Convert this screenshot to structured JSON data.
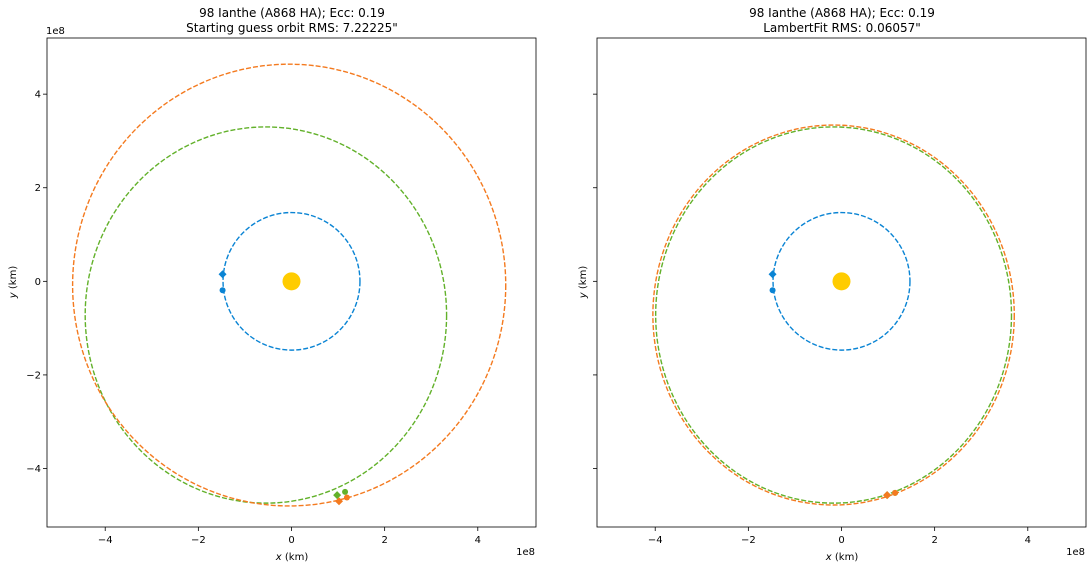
{
  "chart_data": [
    {
      "type": "scatter",
      "title_line1": "98 Ianthe (A868 HA); Ecc: 0.19",
      "title_line2": "Starting guess orbit RMS: 7.22225\"",
      "xlabel_var": "x",
      "xlabel_unit": " (km)",
      "ylabel_var": "y",
      "ylabel_unit": " (km)",
      "x_offset_text": "1e8",
      "y_offset_text": "1e8",
      "xlim": [
        -5.25,
        5.25
      ],
      "ylim": [
        -5.25,
        5.2
      ],
      "xticks": [
        -4,
        -2,
        0,
        2,
        4
      ],
      "yticks": [
        -4,
        -2,
        0,
        2,
        4
      ],
      "xtick_labels": [
        "−4",
        "−2",
        "0",
        "2",
        "4"
      ],
      "ytick_labels": [
        "−4",
        "−2",
        "0",
        "2",
        "4"
      ],
      "show_ytick_labels": true,
      "sun": {
        "x": 0,
        "y": 0,
        "color": "#ffcc00"
      },
      "orbits": [
        {
          "role": "earth",
          "color": "#0a84d4",
          "cx": 0.0,
          "cy": 0.0,
          "rx": 1.47,
          "ry": 1.47
        },
        {
          "role": "object",
          "color": "#62b12a",
          "cx": -0.55,
          "cy": -0.72,
          "rx": 3.88,
          "ry": 4.02
        },
        {
          "role": "fit",
          "color": "#f47a1f",
          "cx": -0.05,
          "cy": -0.08,
          "rx": 4.65,
          "ry": 4.72
        }
      ],
      "markers": [
        {
          "color": "#0a84d4",
          "shape": "diamond",
          "x": -1.48,
          "y": 0.15
        },
        {
          "color": "#0a84d4",
          "shape": "circle",
          "x": -1.48,
          "y": -0.19
        },
        {
          "color": "#62b12a",
          "shape": "diamond",
          "x": 0.98,
          "y": -4.57
        },
        {
          "color": "#62b12a",
          "shape": "circle",
          "x": 1.15,
          "y": -4.5
        },
        {
          "color": "#f47a1f",
          "shape": "diamond",
          "x": 1.02,
          "y": -4.7
        },
        {
          "color": "#f47a1f",
          "shape": "circle",
          "x": 1.19,
          "y": -4.62
        }
      ]
    },
    {
      "type": "scatter",
      "title_line1": "98 Ianthe (A868 HA); Ecc: 0.19",
      "title_line2": "LambertFit RMS: 0.06057\"",
      "xlabel_var": "x",
      "xlabel_unit": " (km)",
      "ylabel_var": "y",
      "ylabel_unit": " (km)",
      "x_offset_text": "1e8",
      "y_offset_text": "",
      "xlim": [
        -5.25,
        5.25
      ],
      "ylim": [
        -5.25,
        5.2
      ],
      "xticks": [
        -4,
        -2,
        0,
        2,
        4
      ],
      "yticks": [
        -4,
        -2,
        0,
        2,
        4
      ],
      "xtick_labels": [
        "−4",
        "−2",
        "0",
        "2",
        "4"
      ],
      "ytick_labels": [
        "",
        "",
        "",
        "",
        ""
      ],
      "show_ytick_labels": false,
      "sun": {
        "x": 0,
        "y": 0,
        "color": "#ffcc00"
      },
      "orbits": [
        {
          "role": "earth",
          "color": "#0a84d4",
          "cx": 0.0,
          "cy": 0.0,
          "rx": 1.47,
          "ry": 1.47
        },
        {
          "role": "object",
          "color": "#62b12a",
          "cx": -0.17,
          "cy": -0.72,
          "rx": 3.82,
          "ry": 4.02
        },
        {
          "role": "fit",
          "color": "#f47a1f",
          "cx": -0.17,
          "cy": -0.72,
          "rx": 3.88,
          "ry": 4.06
        }
      ],
      "markers": [
        {
          "color": "#0a84d4",
          "shape": "diamond",
          "x": -1.48,
          "y": 0.15
        },
        {
          "color": "#0a84d4",
          "shape": "circle",
          "x": -1.48,
          "y": -0.19
        },
        {
          "color": "#62b12a",
          "shape": "diamond",
          "x": 0.98,
          "y": -4.57
        },
        {
          "color": "#62b12a",
          "shape": "circle",
          "x": 1.15,
          "y": -4.52
        },
        {
          "color": "#f47a1f",
          "shape": "diamond",
          "x": 0.98,
          "y": -4.57
        },
        {
          "color": "#f47a1f",
          "shape": "circle",
          "x": 1.15,
          "y": -4.52
        }
      ]
    }
  ]
}
